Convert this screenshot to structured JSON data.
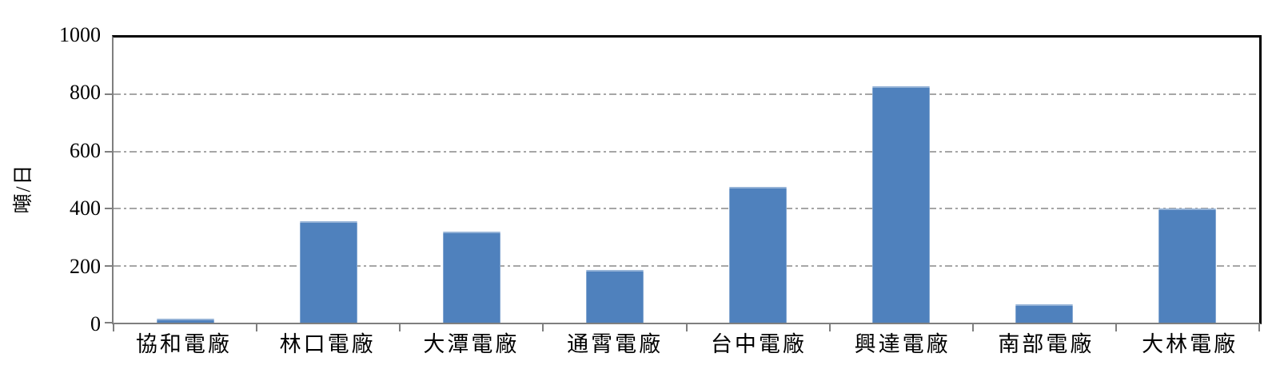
{
  "chart_data": {
    "type": "bar",
    "categories": [
      "協和電廠",
      "林口電廠",
      "大潭電廠",
      "通霄電廠",
      "台中電廠",
      "興達電廠",
      "南部電廠",
      "大林電廠"
    ],
    "values": [
      15,
      355,
      320,
      185,
      475,
      828,
      65,
      400
    ],
    "title": "",
    "xlabel": "",
    "ylabel": "噸/日",
    "ylim": [
      0,
      1000
    ],
    "yticks": [
      0,
      200,
      400,
      600,
      800,
      1000
    ],
    "grid": "horizontal dash-dot gridlines at 200, 400, 600, 800; solid black line at 1000 (top frame)",
    "legend_position": "none"
  },
  "colors": {
    "bar": "#4F81BD",
    "gridline": "#A6A6A6",
    "axis": "#7F7F7F",
    "frame": "#000000",
    "text": "#000000",
    "background": "#FFFFFF"
  }
}
